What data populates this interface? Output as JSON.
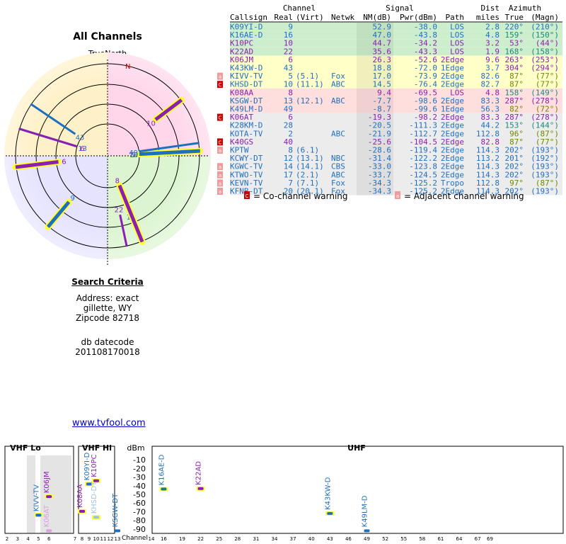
{
  "radar": {
    "title": "All Channels",
    "north_label": "TrueNorth",
    "north_marker": "N"
  },
  "search": {
    "heading": "Search Criteria",
    "address": "Address: exact",
    "city": "gillette, WY",
    "zip": "Zipcode 82718",
    "db_label": "db datecode",
    "db_value": "201108170018"
  },
  "link": {
    "text": "www.tvfool.com"
  },
  "table": {
    "group_headers": {
      "channel": "Channel",
      "signal": "Signal",
      "azimuth": "Azimuth"
    },
    "headers": {
      "callsign": "Callsign",
      "real": "Real",
      "virt": "(Virt)",
      "netwk": "Netwk",
      "nm": "NM(dB)",
      "pwr": "Pwr(dBm)",
      "path": "Path",
      "dist_top": "Dist",
      "dist": "miles",
      "true": "True",
      "magn": "(Magn)"
    },
    "rows": [
      {
        "callsign": "K09YI-D",
        "real": "9",
        "virt": "",
        "netwk": "",
        "nm": "52.9",
        "pwr": "-38.0",
        "path": "LOS",
        "dist": "2.8",
        "az_true": "220°",
        "az_magn": "(210°)",
        "color": "#1f6fbf",
        "band": "#cdeecd",
        "warn": ""
      },
      {
        "callsign": "K16AE-D",
        "real": "16",
        "virt": "",
        "netwk": "",
        "nm": "47.0",
        "pwr": "-43.8",
        "path": "LOS",
        "dist": "4.8",
        "az_true": "159°",
        "az_magn": "(150°)",
        "color": "#1f6fbf",
        "band": "#cdeecd",
        "warn": ""
      },
      {
        "callsign": "K10PC",
        "real": "10",
        "virt": "",
        "netwk": "",
        "nm": "44.7",
        "pwr": "-34.2",
        "path": "LOS",
        "dist": "3.2",
        "az_true": "53°",
        "az_magn": "(44°)",
        "color": "#8a1fb0",
        "band": "#cdeecd",
        "warn": ""
      },
      {
        "callsign": "K22AD",
        "real": "22",
        "virt": "",
        "netwk": "",
        "nm": "35.6",
        "pwr": "-43.3",
        "path": "LOS",
        "dist": "1.9",
        "az_true": "168°",
        "az_magn": "(158°)",
        "color": "#8a1fb0",
        "band": "#cdeecd",
        "warn": ""
      },
      {
        "callsign": "K06JM",
        "real": "6",
        "virt": "",
        "netwk": "",
        "nm": "26.3",
        "pwr": "-52.6",
        "path": "2Edge",
        "dist": "9.6",
        "az_true": "263°",
        "az_magn": "(253°)",
        "color": "#8a1fb0",
        "band": "#ffffc8",
        "warn": ""
      },
      {
        "callsign": "K43KW-D",
        "real": "43",
        "virt": "",
        "netwk": "",
        "nm": "18.8",
        "pwr": "-72.0",
        "path": "1Edge",
        "dist": "3.7",
        "az_true": "304°",
        "az_magn": "(294°)",
        "color": "#1f6fbf",
        "band": "#ffffc8",
        "warn": ""
      },
      {
        "callsign": "KIVV-TV",
        "real": "5",
        "virt": "(5.1)",
        "netwk": "Fox",
        "nm": "17.0",
        "pwr": "-73.9",
        "path": "2Edge",
        "dist": "82.6",
        "az_true": "87°",
        "az_magn": "(77°)",
        "color": "#1f6fbf",
        "band": "#ffffc8",
        "warn": "adj"
      },
      {
        "callsign": "KHSD-DT",
        "real": "10",
        "virt": "(11.1)",
        "netwk": "ABC",
        "nm": "14.5",
        "pwr": "-76.4",
        "path": "2Edge",
        "dist": "82.7",
        "az_true": "87°",
        "az_magn": "(77°)",
        "color": "#1f6fbf",
        "band": "#ffffc8",
        "warn": "co"
      },
      {
        "callsign": "K08AA",
        "real": "8",
        "virt": "",
        "netwk": "",
        "nm": "9.4",
        "pwr": "-69.5",
        "path": "LOS",
        "dist": "4.8",
        "az_true": "158°",
        "az_magn": "(149°)",
        "color": "#8a1fb0",
        "band": "#ffdede",
        "warn": ""
      },
      {
        "callsign": "KSGW-DT",
        "real": "13",
        "virt": "(12.1)",
        "netwk": "ABC",
        "nm": "-7.7",
        "pwr": "-98.6",
        "path": "2Edge",
        "dist": "83.3",
        "az_true": "287°",
        "az_magn": "(278°)",
        "color": "#1f6fbf",
        "band": "#ffdede",
        "warn": ""
      },
      {
        "callsign": "K49LM-D",
        "real": "49",
        "virt": "",
        "netwk": "",
        "nm": "-8.7",
        "pwr": "-99.6",
        "path": "1Edge",
        "dist": "56.3",
        "az_true": "82°",
        "az_magn": "(72°)",
        "color": "#1f6fbf",
        "band": "#ffdede",
        "warn": ""
      },
      {
        "callsign": "K06AT",
        "real": "6",
        "virt": "",
        "netwk": "",
        "nm": "-19.3",
        "pwr": "-98.2",
        "path": "2Edge",
        "dist": "83.3",
        "az_true": "287°",
        "az_magn": "(278°)",
        "color": "#8a1fb0",
        "band": "#ececec",
        "warn": "co"
      },
      {
        "callsign": "K28KM-D",
        "real": "28",
        "virt": "",
        "netwk": "",
        "nm": "-20.5",
        "pwr": "-111.3",
        "path": "2Edge",
        "dist": "44.2",
        "az_true": "153°",
        "az_magn": "(144°)",
        "color": "#1f6fbf",
        "band": "#ececec",
        "warn": ""
      },
      {
        "callsign": "KOTA-TV",
        "real": "2",
        "virt": "",
        "netwk": "ABC",
        "nm": "-21.9",
        "pwr": "-112.7",
        "path": "2Edge",
        "dist": "112.8",
        "az_true": "96°",
        "az_magn": "(87°)",
        "color": "#1f6fbf",
        "band": "#ececec",
        "warn": ""
      },
      {
        "callsign": "K40GS",
        "real": "40",
        "virt": "",
        "netwk": "",
        "nm": "-25.6",
        "pwr": "-104.5",
        "path": "2Edge",
        "dist": "82.8",
        "az_true": "87°",
        "az_magn": "(77°)",
        "color": "#8a1fb0",
        "band": "#ececec",
        "warn": "co"
      },
      {
        "callsign": "KPTW",
        "real": "8",
        "virt": "(6.1)",
        "netwk": "",
        "nm": "-28.6",
        "pwr": "-119.4",
        "path": "2Edge",
        "dist": "114.3",
        "az_true": "202°",
        "az_magn": "(193°)",
        "color": "#1f6fbf",
        "band": "#ececec",
        "warn": "adj"
      },
      {
        "callsign": "KCWY-DT",
        "real": "12",
        "virt": "(13.1)",
        "netwk": "NBC",
        "nm": "-31.4",
        "pwr": "-122.2",
        "path": "2Edge",
        "dist": "113.2",
        "az_true": "201°",
        "az_magn": "(192°)",
        "color": "#1f6fbf",
        "band": "#ececec",
        "warn": ""
      },
      {
        "callsign": "KGWC-TV",
        "real": "14",
        "virt": "(14.1)",
        "netwk": "CBS",
        "nm": "-33.0",
        "pwr": "-123.8",
        "path": "2Edge",
        "dist": "114.3",
        "az_true": "202°",
        "az_magn": "(193°)",
        "color": "#1f6fbf",
        "band": "#ececec",
        "warn": "adj"
      },
      {
        "callsign": "KTWO-TV",
        "real": "17",
        "virt": "(2.1)",
        "netwk": "ABC",
        "nm": "-33.7",
        "pwr": "-124.5",
        "path": "2Edge",
        "dist": "114.3",
        "az_true": "202°",
        "az_magn": "(193°)",
        "color": "#1f6fbf",
        "band": "#ececec",
        "warn": "adj"
      },
      {
        "callsign": "KEVN-TV",
        "real": "7",
        "virt": "(7.1)",
        "netwk": "Fox",
        "nm": "-34.3",
        "pwr": "-125.2",
        "path": "Tropo",
        "dist": "112.8",
        "az_true": "97°",
        "az_magn": "(87°)",
        "color": "#1f6fbf",
        "band": "#ececec",
        "warn": "adj"
      },
      {
        "callsign": "KFNB-DT",
        "real": "20",
        "virt": "(20.1)",
        "netwk": "Fox",
        "nm": "-34.3",
        "pwr": "-125.2",
        "path": "2Edge",
        "dist": "114.3",
        "az_true": "202°",
        "az_magn": "(193°)",
        "color": "#1f6fbf",
        "band": "#ececec",
        "warn": "adj"
      }
    ],
    "legend": {
      "co": "= Co-channel warning",
      "adj": "= Adjacent channel warning",
      "co_glyph": "C",
      "adj_glyph": "a"
    }
  },
  "chart_data": [
    {
      "type": "radar",
      "title": "All Channels",
      "stations": [
        {
          "label": "9",
          "azimuth": 220,
          "distance": 0.7,
          "color": "#1f6fbf",
          "strong": true
        },
        {
          "label": "16",
          "azimuth": 159,
          "distance": 0.85,
          "color": "#1f6fbf",
          "strong": false
        },
        {
          "label": "10",
          "azimuth": 53,
          "distance": 0.7,
          "color": "#8a1fb0",
          "strong": true
        },
        {
          "label": "22",
          "azimuth": 168,
          "distance": 0.7,
          "color": "#8a1fb0",
          "strong": false
        },
        {
          "label": "6",
          "azimuth": 263,
          "distance": 0.55,
          "color": "#8a1fb0",
          "strong": true
        },
        {
          "label": "43",
          "azimuth": 304,
          "distance": 0.4,
          "color": "#1f6fbf",
          "strong": false
        },
        {
          "label": "5",
          "azimuth": 87,
          "distance": 0.3,
          "color": "#1f6fbf",
          "strong": false
        },
        {
          "label": "10",
          "azimuth": 87,
          "distance": 0.3,
          "color": "#1f6fbf",
          "strong": true
        },
        {
          "label": "8",
          "azimuth": 158,
          "distance": 0.3,
          "color": "#8a1fb0",
          "strong": true
        },
        {
          "label": "13",
          "azimuth": 287,
          "distance": 0.3,
          "color": "#1f6fbf",
          "strong": false
        },
        {
          "label": "49",
          "azimuth": 82,
          "distance": 0.3,
          "color": "#1f6fbf",
          "strong": false
        },
        {
          "label": "6",
          "azimuth": 287,
          "distance": 0.3,
          "color": "#8a1fb0",
          "strong": false
        }
      ]
    },
    {
      "type": "bar",
      "ylabel": "dBm",
      "yticks": [
        "-10",
        "-20",
        "-30",
        "-40",
        "-50",
        "-60",
        "-70",
        "-80",
        "-90"
      ],
      "ylim": [
        -95,
        -5
      ],
      "band_labels": {
        "vhf_lo": "VHF Lo",
        "vhf_hi": "VHF Hi",
        "uhf": "UHF"
      },
      "x_label": "Channel",
      "x_ticks_lo": [
        "2",
        "3",
        "4",
        "5",
        "6"
      ],
      "x_ticks_hi": [
        "7",
        "8",
        "9",
        "10",
        "11",
        "12",
        "13"
      ],
      "x_ticks_uhf": [
        "14",
        "16",
        "19",
        "22",
        "25",
        "28",
        "31",
        "34",
        "37",
        "40",
        "43",
        "46",
        "49",
        "52",
        "55",
        "58",
        "61",
        "64",
        "67",
        "69"
      ],
      "signals": [
        {
          "callsign": "K09YI-D",
          "channel": 9,
          "dbm": -38.0,
          "color": "#1f6fbf"
        },
        {
          "callsign": "K10PC",
          "channel": 10,
          "dbm": -34.2,
          "color": "#8a1fb0"
        },
        {
          "callsign": "K16AE-D",
          "channel": 16,
          "dbm": -43.8,
          "color": "#1f6fbf"
        },
        {
          "callsign": "K22AD",
          "channel": 22,
          "dbm": -43.3,
          "color": "#8a1fb0"
        },
        {
          "callsign": "K06JM",
          "channel": 6,
          "dbm": -52.6,
          "color": "#8a1fb0"
        },
        {
          "callsign": "K43KW-D",
          "channel": 43,
          "dbm": -72.0,
          "color": "#1f6fbf"
        },
        {
          "callsign": "KIVV-TV",
          "channel": 5,
          "dbm": -73.9,
          "color": "#1f6fbf"
        },
        {
          "callsign": "KHSD-DT",
          "channel": 10,
          "dbm": -76.4,
          "color": "#9fc3e6"
        },
        {
          "callsign": "K08AA",
          "channel": 8,
          "dbm": -69.5,
          "color": "#8a1fb0"
        },
        {
          "callsign": "KSGW-DT",
          "channel": 13,
          "dbm": -98.6,
          "color": "#1f6fbf"
        },
        {
          "callsign": "K49LM-D",
          "channel": 49,
          "dbm": -99.6,
          "color": "#1f6fbf"
        },
        {
          "callsign": "K06AT",
          "channel": 6,
          "dbm": -98.2,
          "color": "#d9a0e0"
        }
      ]
    }
  ]
}
